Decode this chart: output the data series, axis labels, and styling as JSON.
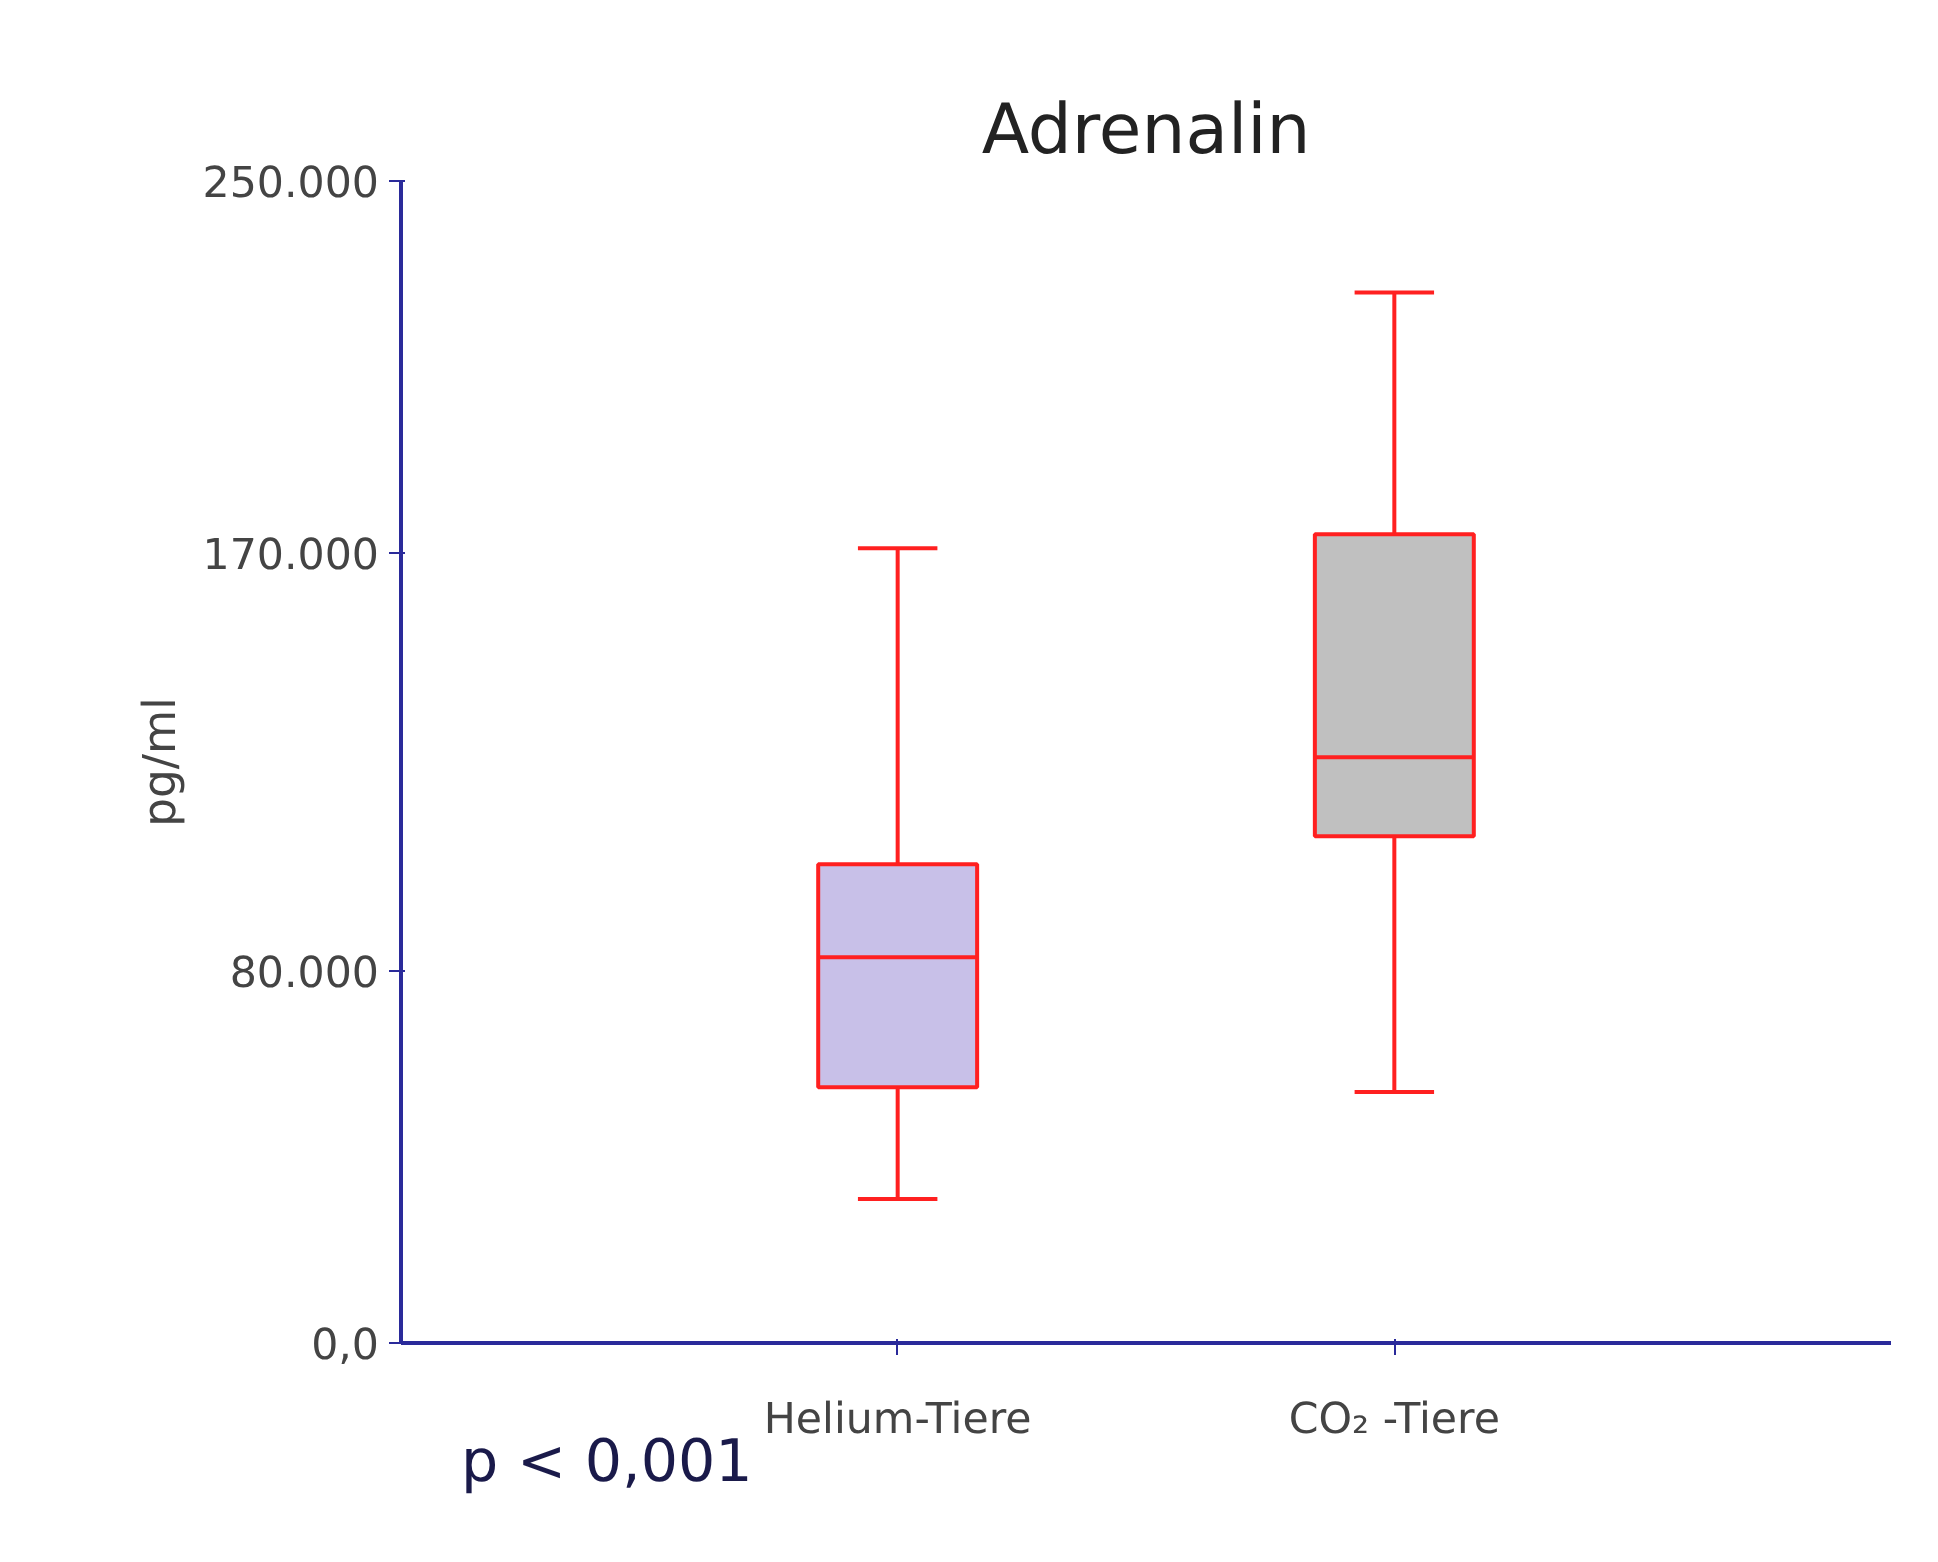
{
  "chart_data": {
    "type": "box",
    "title": "Adrenalin",
    "ylabel": "pg/ml",
    "categories": [
      "Helium-Tiere",
      "CO₂ -Tiere"
    ],
    "boxes": [
      {
        "low": 31000,
        "q1": 55000,
        "median": 83000,
        "q3": 103000,
        "high": 171000
      },
      {
        "low": 54000,
        "q1": 109000,
        "median": 126000,
        "q3": 174000,
        "high": 226000
      }
    ],
    "colors": [
      "#c8c0e8",
      "#c0c0c0"
    ],
    "ylim": [
      0,
      250000
    ],
    "yticks": [
      {
        "value": 0,
        "label": "0,0"
      },
      {
        "value": 80000,
        "label": "80.000"
      },
      {
        "value": 170000,
        "label": "170.000"
      },
      {
        "value": 250000,
        "label": "250.000"
      }
    ],
    "grid": false,
    "annotations": [
      "p < 0,001"
    ]
  }
}
